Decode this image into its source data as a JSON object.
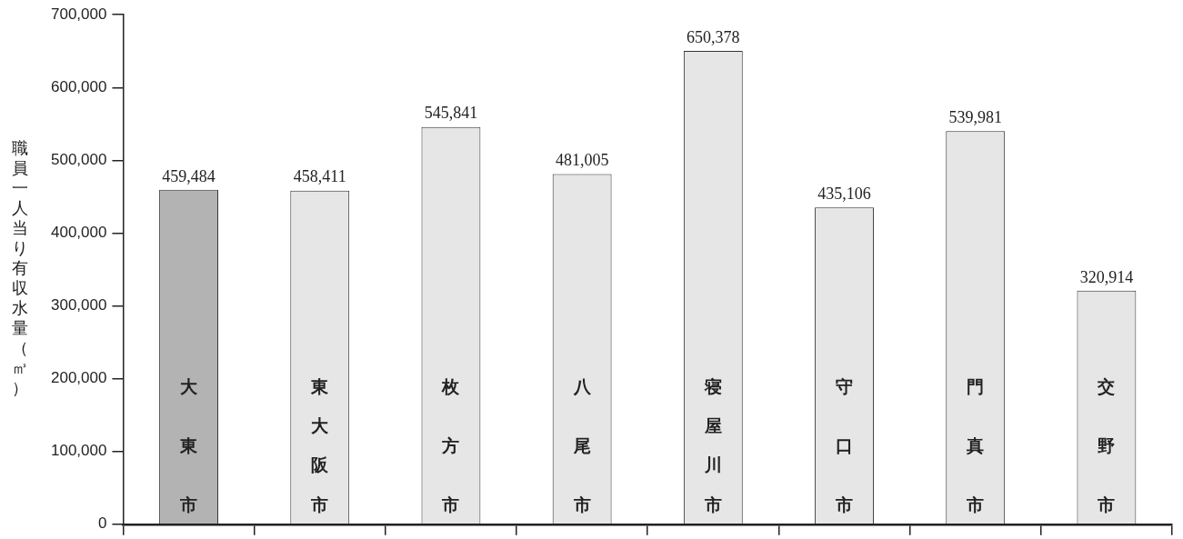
{
  "chart_data": {
    "type": "bar",
    "ylabel": "職員一人当り有収水量（㎥）",
    "categories": [
      "大東市",
      "東大阪市",
      "枚方市",
      "八尾市",
      "寝屋川市",
      "守口市",
      "門真市",
      "交野市"
    ],
    "values": [
      459484,
      458411,
      545841,
      481005,
      650378,
      435106,
      539981,
      320914
    ],
    "colors": [
      "#b3b3b3",
      "#e6e6e6",
      "#e6e6e6",
      "#e6e6e6",
      "#e6e6e6",
      "#e6e6e6",
      "#e6e6e6",
      "#e6e6e6"
    ],
    "value_labels": [
      "459,484",
      "458,411",
      "545,841",
      "481,005",
      "650,378",
      "435,106",
      "539,981",
      "320,914"
    ],
    "ylim": [
      0,
      700000
    ],
    "yticks": [
      0,
      {
        "value": 100000,
        "label": "100,000"
      },
      {
        "value": 200000,
        "label": "200,000"
      },
      {
        "value": 300000,
        "label": "300,000"
      },
      {
        "value": 400000,
        "label": "400,000"
      },
      {
        "value": 500000,
        "label": "500,000"
      },
      {
        "value": 600000,
        "label": "600,000"
      },
      {
        "value": 700000,
        "label": "700,000"
      }
    ],
    "grid": false,
    "legend": false
  }
}
